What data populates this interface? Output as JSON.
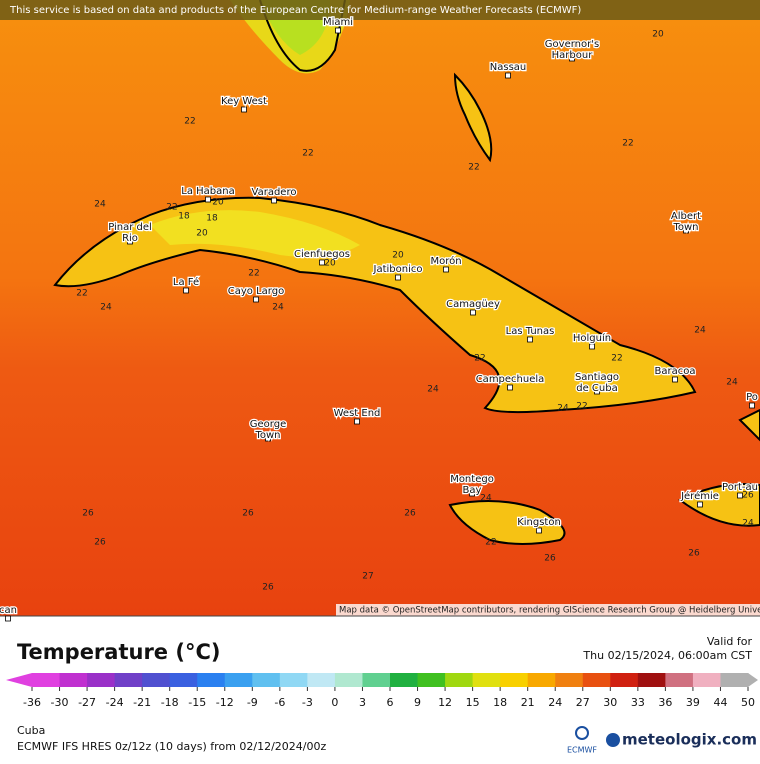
{
  "banner": "This service is based on data and products of the European Centre for Medium-range Weather Forecasts (ECMWF)",
  "cities": [
    [
      "Miami"
    ],
    [
      "Nassau"
    ],
    [
      "Governor's",
      "Harbour"
    ],
    [
      "Key West"
    ],
    [
      "La Habana"
    ],
    [
      "Varadero"
    ],
    [
      "Pinar del",
      "Rio"
    ],
    [
      "Cienfuegos"
    ],
    [
      "Jatibonico"
    ],
    [
      "Morón"
    ],
    [
      "Camagüey"
    ],
    [
      "La Fé"
    ],
    [
      "Cayo Largo"
    ],
    [
      "Las Tunas"
    ],
    [
      "Holguín"
    ],
    [
      "Campechuela"
    ],
    [
      "Santiago",
      "de Cuba"
    ],
    [
      "Baracoa"
    ],
    [
      "Albert",
      "Town"
    ],
    [
      "George",
      "Town"
    ],
    [
      "West End"
    ],
    [
      "Montego",
      "Bay"
    ],
    [
      "Kingston"
    ],
    [
      "Jérémie"
    ],
    [
      "Port-au"
    ],
    [
      "Po"
    ],
    [
      "can"
    ]
  ],
  "contour_labels": [
    20,
    22,
    22,
    22,
    22,
    24,
    22,
    18,
    20,
    18,
    20,
    20,
    20,
    22,
    22,
    24,
    24,
    22,
    22,
    24,
    24,
    22,
    24,
    24,
    26,
    26,
    26,
    26,
    26,
    26,
    26,
    22,
    24,
    27,
    26,
    24
  ],
  "attribution": "Map data © OpenStreetMap contributors, rendering GIScience Research Group @ Heidelberg University",
  "legend": {
    "title": "Temperature (°C)",
    "ticks": [
      -36,
      -30,
      -27,
      -24,
      -21,
      -18,
      -15,
      -12,
      -9,
      -6,
      -3,
      0,
      3,
      6,
      9,
      12,
      15,
      18,
      21,
      24,
      27,
      30,
      33,
      36,
      39,
      44,
      50
    ],
    "colors": [
      "#e040e0",
      "#c030d0",
      "#9a30c8",
      "#7040c8",
      "#5050d0",
      "#3a60e0",
      "#2a80f0",
      "#3aa0f0",
      "#60c0f0",
      "#90d8f4",
      "#c0e8f4",
      "#b0e8d0",
      "#60d090",
      "#20b040",
      "#40c020",
      "#a0d810",
      "#e0e010",
      "#f8d000",
      "#f8a800",
      "#f08010",
      "#e85010",
      "#d02010",
      "#a01010",
      "#d07080",
      "#f0b0c0",
      "#b0b0b0"
    ]
  },
  "valid_label": "Valid for",
  "valid_time": "Thu 02/15/2024, 06:00am CST",
  "region": "Cuba",
  "model": "ECMWF IFS HRES 0z/12z (10 days) from  02/12/2024/00z",
  "logo_ecmwf": "ECMWF",
  "logo_site": "meteologix.com"
}
